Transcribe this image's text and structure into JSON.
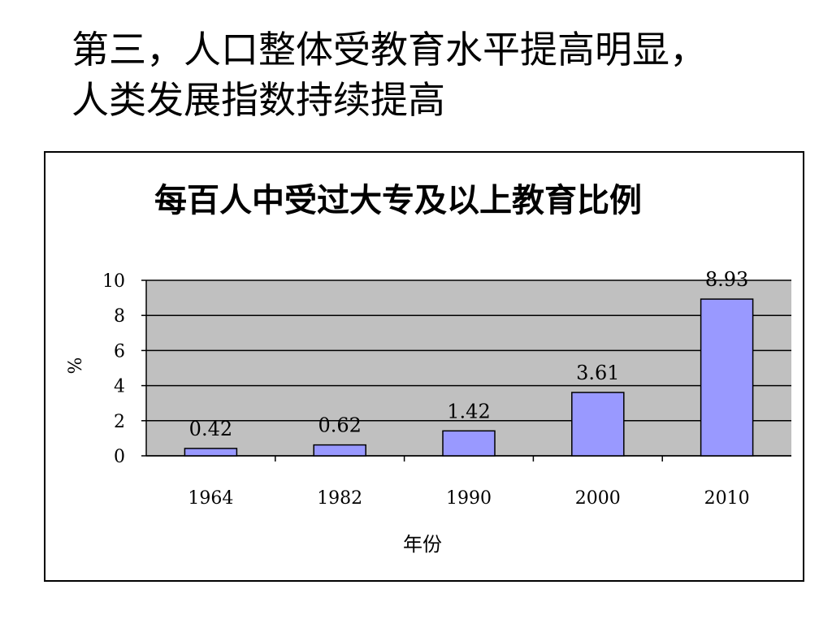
{
  "slide": {
    "heading_line1": "第三，人口整体受教育水平提高明显，",
    "heading_line2": "人类发展指数持续提高"
  },
  "colors": {
    "bar_fill": "#9999FF",
    "plot_background": "#C0C0C0",
    "frame": "#000000"
  },
  "chart_data": {
    "type": "bar",
    "title": "每百人中受过大专及以上教育比例",
    "xlabel": "年份",
    "ylabel": "%",
    "categories": [
      "1964",
      "1982",
      "1990",
      "2000",
      "2010"
    ],
    "values": [
      0.42,
      0.62,
      1.42,
      3.61,
      8.93
    ],
    "value_labels": [
      "0.42",
      "0.62",
      "1.42",
      "3.61",
      "8.93"
    ],
    "yticks": [
      "0",
      "2",
      "4",
      "6",
      "8",
      "10"
    ],
    "ylim": [
      0,
      10
    ],
    "grid": true,
    "legend": "none"
  }
}
